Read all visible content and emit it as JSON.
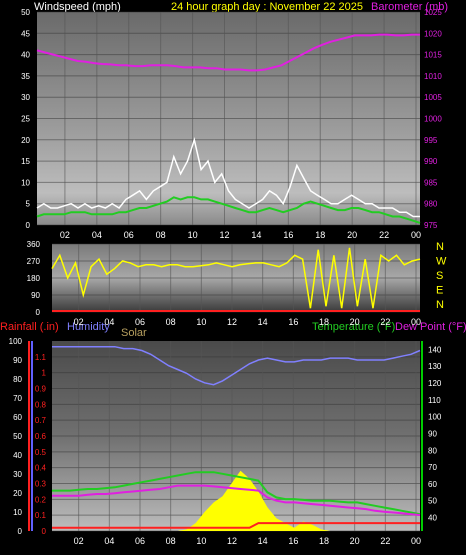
{
  "header": {
    "left": "Windspeed (mph)",
    "center": "24 hour graph day : November 22 2025",
    "right": "Barometer (mb)"
  },
  "colors": {
    "background": "#000000",
    "wind_avg": "#22cc22",
    "wind_gust": "#ffffff",
    "barometer": "#e020e0",
    "direction": "#ffff00",
    "rain": "#ff2020",
    "humidity": "#8080ff",
    "solar": "#ffff00",
    "temperature": "#22cc22",
    "dewpoint": "#e020e0",
    "axis_left_bottom": "#6060ff",
    "axis_right_bottom": "#00cc00"
  },
  "x_ticks": [
    "02",
    "04",
    "06",
    "08",
    "10",
    "12",
    "14",
    "16",
    "18",
    "20",
    "22",
    "00"
  ],
  "panel3_header": {
    "rainfall": "Rainfall (.in)",
    "humidity": "Humidity",
    "solar": "Solar",
    "temperature": "Temperature (°F)",
    "dewpoint": "Dew Point (°F)"
  },
  "compass": [
    "N",
    "W",
    "S",
    "E",
    "N"
  ],
  "chart_data": [
    {
      "type": "line",
      "name": "wind_and_barometer",
      "x_ticks": [
        "02",
        "04",
        "06",
        "08",
        "10",
        "12",
        "14",
        "16",
        "18",
        "20",
        "22",
        "00"
      ],
      "y_left": {
        "ticks": [
          0,
          5,
          10,
          15,
          20,
          25,
          30,
          35,
          40,
          45,
          50
        ],
        "ylim": [
          0,
          50
        ]
      },
      "y_right": {
        "ticks": [
          975,
          980,
          985,
          990,
          995,
          1000,
          1005,
          1010,
          1015,
          1020,
          1025
        ],
        "ylim": [
          975,
          1025
        ]
      },
      "series": [
        {
          "color": "#22cc22",
          "axis": "left",
          "values": [
            2,
            2.5,
            2.5,
            2.5,
            2.5,
            3,
            3,
            3,
            2.5,
            2.5,
            2.5,
            2.5,
            3,
            3,
            3.5,
            4,
            4,
            4.5,
            5,
            5.5,
            6.5,
            6,
            6.5,
            6.5,
            6,
            6,
            5.5,
            5,
            4.5,
            4,
            3.5,
            3,
            3,
            3.5,
            4,
            3.5,
            3,
            3.5,
            4,
            5,
            5.5,
            5,
            4.5,
            4,
            3.5,
            3.5,
            4,
            4,
            3.5,
            3,
            3,
            2.5,
            2,
            2,
            1.5,
            1,
            0.5
          ]
        },
        {
          "color": "#ffffff",
          "axis": "left",
          "values": [
            4,
            5,
            4,
            4,
            4.5,
            5,
            4,
            5,
            4,
            4.5,
            4,
            5,
            4,
            6,
            7,
            8,
            6,
            8,
            9,
            10,
            16,
            12,
            15,
            20,
            13,
            15,
            10,
            12,
            8,
            6,
            5,
            4,
            5,
            6,
            8,
            7,
            5,
            9,
            14,
            11,
            8,
            7,
            6,
            5,
            5,
            6,
            7,
            6,
            5,
            5,
            4,
            4,
            4,
            3,
            3,
            2,
            2
          ]
        },
        {
          "color": "#e020e0",
          "axis": "right",
          "values": [
            1016,
            1015.5,
            1015,
            1014.5,
            1014,
            1013.5,
            1013.3,
            1013,
            1012.8,
            1012.7,
            1012.5,
            1012.5,
            1012.3,
            1012.3,
            1012.5,
            1012.5,
            1012.5,
            1012.3,
            1012,
            1012,
            1012,
            1011.8,
            1011.8,
            1011.5,
            1011.5,
            1011.5,
            1011.3,
            1011.3,
            1011.5,
            1012,
            1012.5,
            1013.5,
            1014.5,
            1015.5,
            1016.5,
            1017.3,
            1018,
            1018.5,
            1019,
            1019.5,
            1019.5,
            1019.5,
            1019.7,
            1019.7,
            1019.5,
            1019.5,
            1019.7,
            1019.7
          ]
        }
      ]
    },
    {
      "type": "line",
      "name": "wind_direction",
      "x_ticks": [
        "02",
        "04",
        "06",
        "08",
        "10",
        "12",
        "14",
        "16",
        "18",
        "20",
        "22",
        "00"
      ],
      "y_left": {
        "ticks": [
          0,
          90,
          180,
          270,
          360
        ],
        "ylim": [
          0,
          360
        ]
      },
      "y_right_labels": [
        "N",
        "W",
        "S",
        "E",
        "N"
      ],
      "series": [
        {
          "color": "#ffff00",
          "values": [
            230,
            300,
            180,
            260,
            90,
            240,
            280,
            200,
            230,
            270,
            260,
            240,
            250,
            250,
            240,
            250,
            250,
            240,
            240,
            245,
            250,
            260,
            250,
            240,
            250,
            255,
            260,
            260,
            250,
            240,
            260,
            300,
            280,
            20,
            330,
            30,
            300,
            20,
            340,
            30,
            280,
            20,
            300,
            270,
            300,
            250,
            270,
            280
          ]
        }
      ]
    },
    {
      "type": "line",
      "name": "rain_humidity_solar_temp_dew",
      "x_ticks": [
        "02",
        "04",
        "06",
        "08",
        "10",
        "12",
        "14",
        "16",
        "18",
        "20",
        "22",
        "00"
      ],
      "y_left_rain": {
        "ticks": [
          0,
          0.1,
          0.2,
          0.3,
          0.4,
          0.5,
          0.6,
          0.7,
          0.8,
          0.9,
          1,
          1.1
        ],
        "ylim": [
          0,
          1.2
        ]
      },
      "y_left_humidity": {
        "ticks": [
          0,
          10,
          20,
          30,
          40,
          50,
          60,
          70,
          80,
          90,
          100
        ],
        "ylim": [
          0,
          100
        ]
      },
      "y_right": {
        "ticks": [
          40,
          50,
          60,
          70,
          80,
          90,
          100,
          110,
          120,
          130,
          140
        ],
        "ylim": [
          32,
          145
        ]
      },
      "series": [
        {
          "color": "#8080ff",
          "axis": "humidity",
          "values": [
            97,
            97,
            97,
            97,
            97,
            97,
            97,
            97,
            96,
            96,
            95,
            93,
            90,
            87,
            85,
            83,
            80,
            78,
            77,
            79,
            82,
            85,
            88,
            90,
            91,
            90,
            89,
            89,
            90,
            90,
            90,
            91,
            91,
            91,
            90,
            90,
            90,
            90,
            91,
            92,
            93,
            95
          ]
        },
        {
          "color": "#22cc22",
          "axis": "right",
          "values": [
            56,
            56,
            56,
            56.5,
            57,
            57,
            57.5,
            58,
            59,
            60,
            61,
            62,
            63,
            64,
            65,
            66,
            67,
            67,
            67,
            66,
            65,
            64,
            63,
            62,
            55,
            52,
            51,
            51,
            50.5,
            50,
            50,
            50,
            49.5,
            49,
            49,
            48,
            47,
            46,
            45,
            44,
            43,
            42
          ]
        },
        {
          "color": "#e020e0",
          "axis": "right",
          "values": [
            53,
            53,
            53,
            53,
            53.5,
            54,
            54,
            54.5,
            55,
            55.5,
            56,
            56.5,
            57,
            58,
            59,
            59,
            59,
            59,
            58.5,
            58,
            57.5,
            57,
            56.5,
            56,
            52,
            50,
            49,
            49,
            48.5,
            48,
            47.5,
            47,
            46.5,
            46,
            45.5,
            45,
            44,
            43.5,
            43,
            42.5,
            42,
            41.5
          ]
        },
        {
          "color": "#ff2020",
          "axis": "rain",
          "values": [
            0.02,
            0.02,
            0.02,
            0.02,
            0.02,
            0.02,
            0.02,
            0.02,
            0.02,
            0.02,
            0.02,
            0.02,
            0.02,
            0.02,
            0.02,
            0.02,
            0.02,
            0.02,
            0.02,
            0.02,
            0.02,
            0.02,
            0.02,
            0.05,
            0.05,
            0.05,
            0.05,
            0.05,
            0.05,
            0.05,
            0.05,
            0.05,
            0.05,
            0.05,
            0.05,
            0.05,
            0.05,
            0.05,
            0.05,
            0.05,
            0.05,
            0.05
          ]
        },
        {
          "color": "#ffff00",
          "axis": "rain",
          "values": [
            0,
            0,
            0,
            0,
            0,
            0,
            0,
            0,
            0,
            0,
            0,
            0,
            0,
            0,
            0,
            0.01,
            0.05,
            0.12,
            0.18,
            0.22,
            0.3,
            0.38,
            0.33,
            0.25,
            0.15,
            0.08,
            0.05,
            0.02,
            0.06,
            0.04,
            0.01,
            0,
            0,
            0,
            0,
            0,
            0,
            0,
            0,
            0,
            0,
            0
          ]
        }
      ]
    }
  ]
}
